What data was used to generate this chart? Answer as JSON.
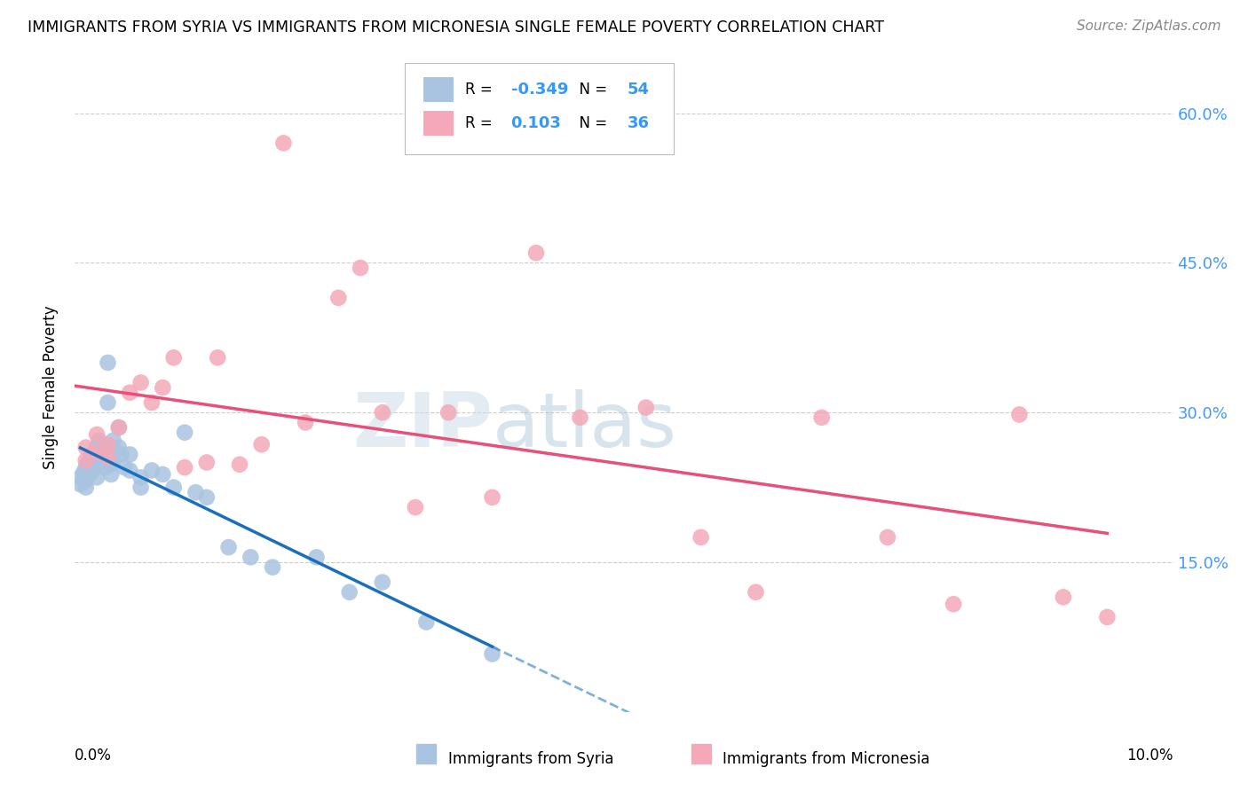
{
  "title": "IMMIGRANTS FROM SYRIA VS IMMIGRANTS FROM MICRONESIA SINGLE FEMALE POVERTY CORRELATION CHART",
  "source": "Source: ZipAtlas.com",
  "ylabel": "Single Female Poverty",
  "yticks": [
    0.0,
    0.15,
    0.3,
    0.45,
    0.6
  ],
  "ytick_labels": [
    "",
    "15.0%",
    "30.0%",
    "45.0%",
    "60.0%"
  ],
  "xlim": [
    0.0,
    0.1
  ],
  "ylim": [
    0.0,
    0.65
  ],
  "r_syria": -0.349,
  "n_syria": 54,
  "r_micronesia": 0.103,
  "n_micronesia": 36,
  "color_syria": "#a8c4e0",
  "color_micronesia": "#f4a8b8",
  "line_color_syria": "#1a6fbd",
  "line_color_micronesia": "#e8507a",
  "syria_x": [
    0.0005,
    0.0005,
    0.0008,
    0.001,
    0.001,
    0.001,
    0.001,
    0.0012,
    0.0012,
    0.0013,
    0.0015,
    0.0015,
    0.0015,
    0.0017,
    0.0018,
    0.002,
    0.002,
    0.002,
    0.002,
    0.0022,
    0.0022,
    0.0023,
    0.0025,
    0.0025,
    0.0027,
    0.003,
    0.003,
    0.003,
    0.0032,
    0.0033,
    0.0035,
    0.0035,
    0.004,
    0.004,
    0.0042,
    0.0045,
    0.005,
    0.005,
    0.006,
    0.006,
    0.007,
    0.008,
    0.009,
    0.01,
    0.011,
    0.012,
    0.014,
    0.016,
    0.018,
    0.022,
    0.025,
    0.028,
    0.032,
    0.038
  ],
  "syria_y": [
    0.235,
    0.228,
    0.24,
    0.245,
    0.238,
    0.232,
    0.225,
    0.25,
    0.242,
    0.238,
    0.255,
    0.248,
    0.24,
    0.26,
    0.252,
    0.265,
    0.258,
    0.248,
    0.235,
    0.272,
    0.26,
    0.25,
    0.268,
    0.255,
    0.245,
    0.35,
    0.31,
    0.262,
    0.248,
    0.238,
    0.272,
    0.252,
    0.285,
    0.265,
    0.258,
    0.245,
    0.258,
    0.242,
    0.235,
    0.225,
    0.242,
    0.238,
    0.225,
    0.28,
    0.22,
    0.215,
    0.165,
    0.155,
    0.145,
    0.155,
    0.12,
    0.13,
    0.09,
    0.058
  ],
  "micronesia_x": [
    0.001,
    0.001,
    0.002,
    0.002,
    0.003,
    0.003,
    0.004,
    0.005,
    0.006,
    0.007,
    0.008,
    0.009,
    0.01,
    0.012,
    0.013,
    0.015,
    0.017,
    0.019,
    0.021,
    0.024,
    0.026,
    0.028,
    0.031,
    0.034,
    0.038,
    0.042,
    0.046,
    0.052,
    0.057,
    0.062,
    0.068,
    0.074,
    0.08,
    0.086,
    0.09,
    0.094
  ],
  "micronesia_y": [
    0.265,
    0.252,
    0.278,
    0.26,
    0.268,
    0.255,
    0.285,
    0.32,
    0.33,
    0.31,
    0.325,
    0.355,
    0.245,
    0.25,
    0.355,
    0.248,
    0.268,
    0.57,
    0.29,
    0.415,
    0.445,
    0.3,
    0.205,
    0.3,
    0.215,
    0.46,
    0.295,
    0.305,
    0.175,
    0.12,
    0.295,
    0.175,
    0.108,
    0.298,
    0.115,
    0.095
  ]
}
